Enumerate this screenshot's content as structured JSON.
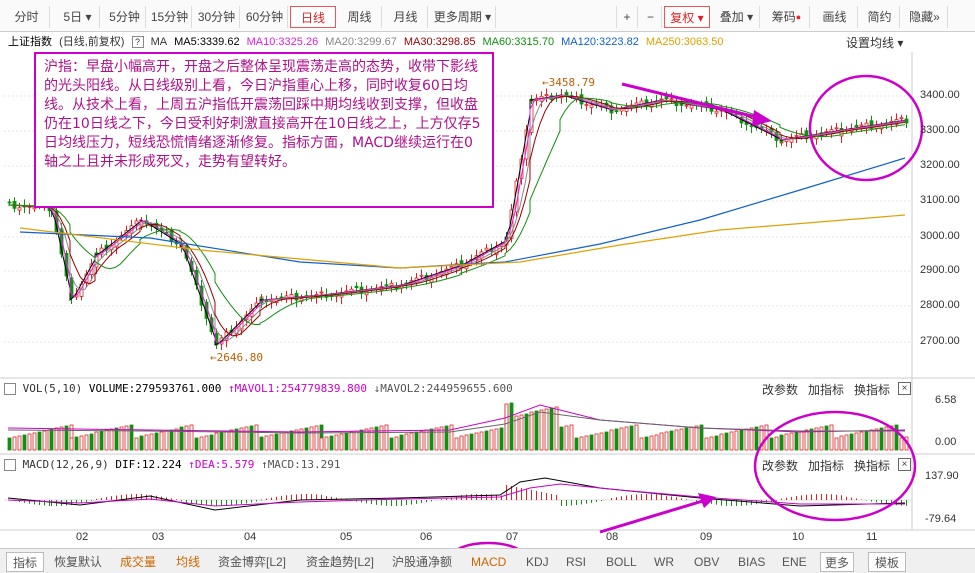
{
  "toolbar": {
    "periods": [
      "分时",
      "5日",
      "5分钟",
      "15分钟",
      "30分钟",
      "60分钟",
      "日线",
      "周线",
      "月线",
      "更多周期"
    ],
    "tools": [
      "+",
      "−",
      "复权",
      "叠加",
      "筹码",
      "画线",
      "简约",
      "隐藏"
    ]
  },
  "info": {
    "index_name": "上证指数",
    "mode": "(日线,前复权)",
    "ma_label": "MA",
    "ma5": "MA5:3339.62",
    "ma10": "MA10:3325.26",
    "ma20": "MA20:3299.67",
    "ma30": "MA30:3298.85",
    "ma60": "MA60:3315.70",
    "ma120": "MA120:3223.82",
    "ma250": "MA250:3063.50",
    "settings": "设置均线"
  },
  "callout": {
    "text": "沪指：早盘小幅高开，开盘之后整体呈现震荡走高的态势，收带下影线的光头阳线。从日线级别上看，今日沪指重心上移，同时收复60日均线。从技术上看，上周五沪指低开震荡回踩中期均线收到支撑，但收盘仍在10日线之下，今日受利好刺激直接高开在10日线之上，上方仅存5日均线压力，短线恐慌情绪逐渐修复。指标方面，MACD继续运行在0轴之上且并未形成死叉，走势有望转好。"
  },
  "price_axis": [
    "3400.00",
    "3300.00",
    "3200.00",
    "3100.00",
    "3000.00",
    "2900.00",
    "2800.00",
    "2700.00"
  ],
  "annotations": {
    "high": "3458.79",
    "low": "2646.80"
  },
  "vol_panel": {
    "label": "VOL(5,10)",
    "volume": "VOLUME:279593761.000",
    "mavol1": "MAVOL1:254779839.800",
    "mavol2": "MAVOL2:244959655.600",
    "axis_top": "6.58",
    "axis_bottom": "0.00",
    "btn_params": "改参数",
    "btn_add": "加指标",
    "btn_switch": "换指标"
  },
  "macd_panel": {
    "label": "MACD(12,26,9)",
    "dif": "DIF:12.224",
    "dea": "DEA:5.579",
    "macd": "MACD:13.291",
    "axis_top": "137.90",
    "axis_bottom": "-79.64",
    "btn_params": "改参数",
    "btn_add": "加指标",
    "btn_switch": "换指标"
  },
  "months": [
    "02",
    "03",
    "04",
    "05",
    "06",
    "07",
    "08",
    "09",
    "10",
    "11"
  ],
  "bottom_tabs": [
    "指标",
    "恢复默认",
    "成交量",
    "均线",
    "资金博弈[L2]",
    "资金趋势[L2]",
    "沪股通净额",
    "MACD",
    "KDJ",
    "RSI",
    "BOLL",
    "WR",
    "OBV",
    "BIAS",
    "ENE",
    "更多",
    "模板"
  ],
  "colors": {
    "up": "#e02020",
    "down": "#109010",
    "highlight": "#cc00cc"
  }
}
